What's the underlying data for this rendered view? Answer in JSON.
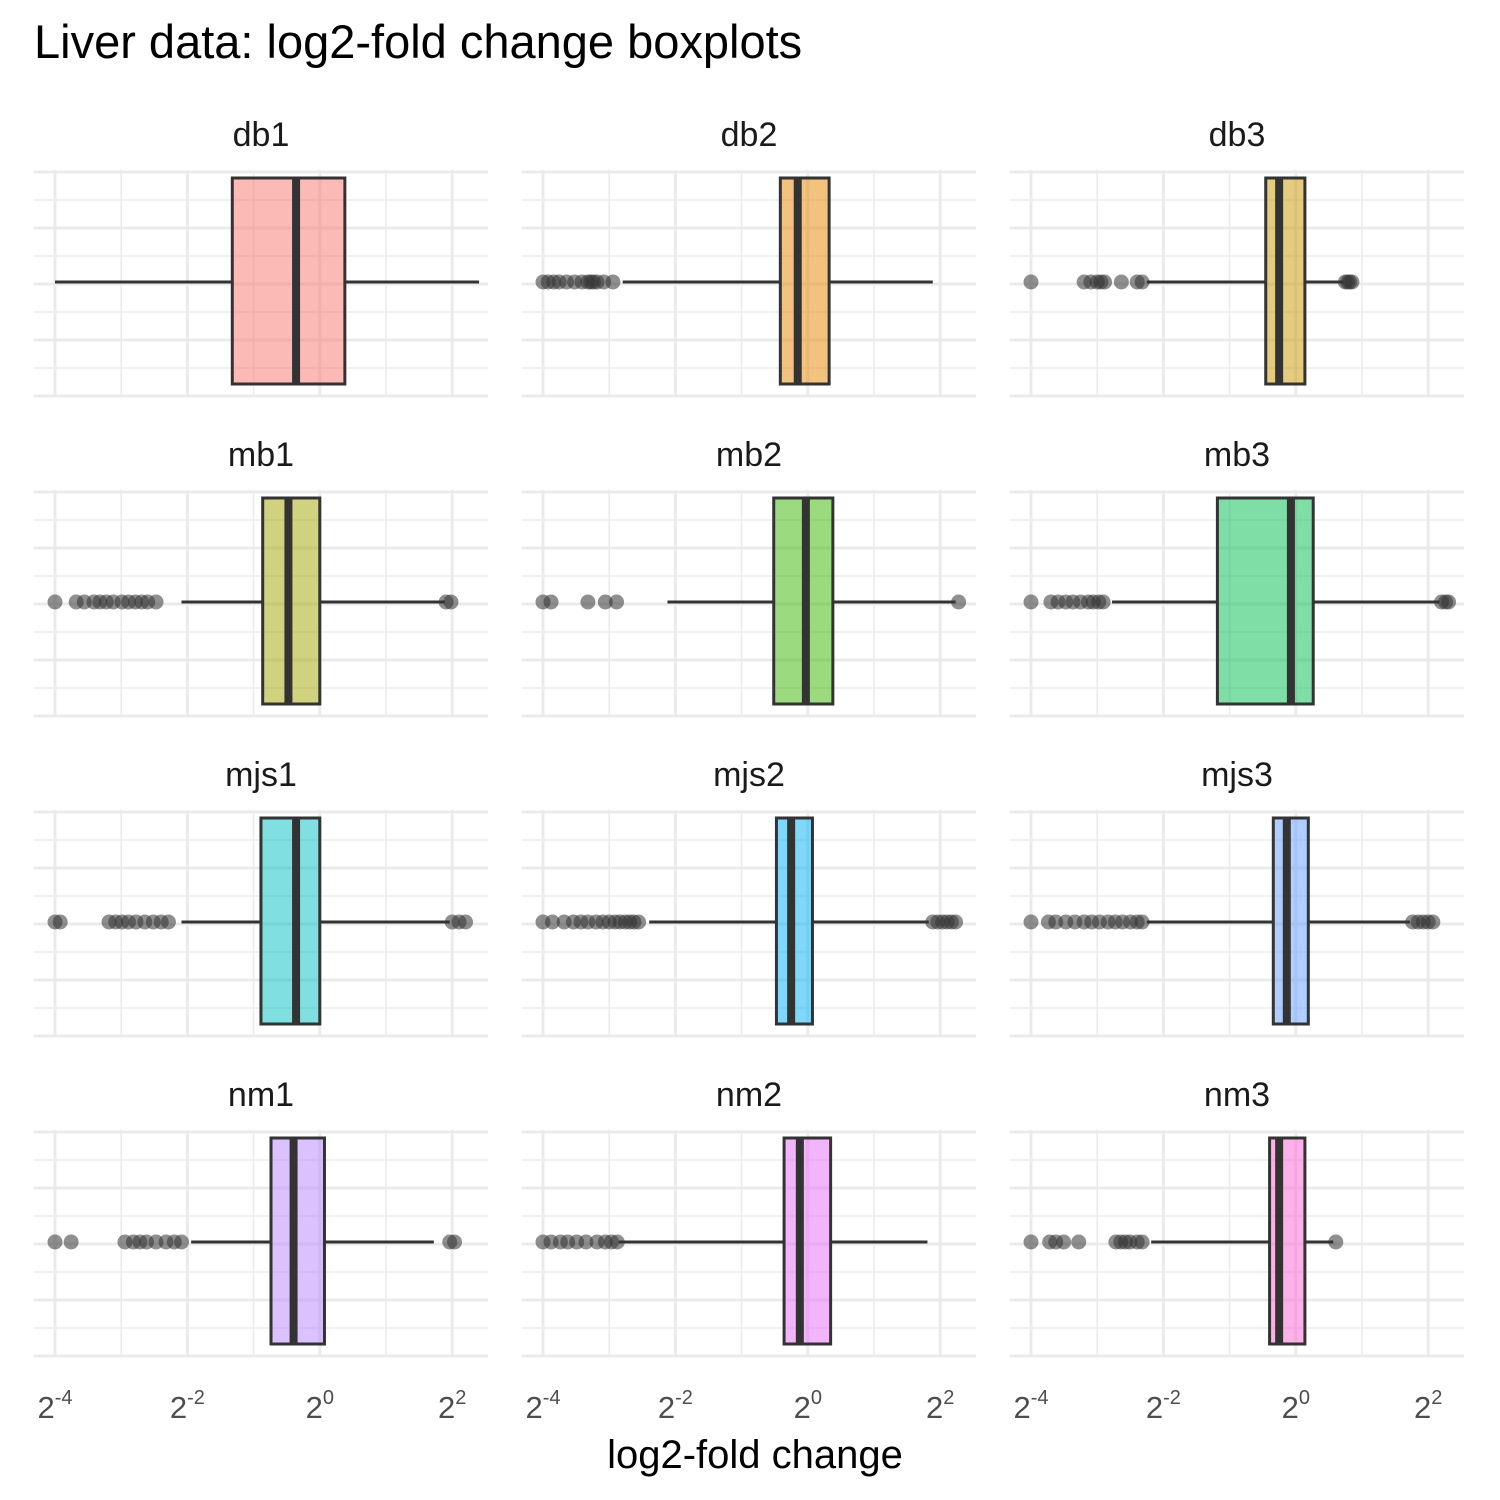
{
  "chart_data": {
    "type": "boxplot",
    "title": "Liver data: log2-fold change boxplots",
    "xlabel": "log2-fold change",
    "ylabel": "",
    "x_scale": "log2",
    "x_ticks": [
      {
        "base": "2",
        "exp": "-4"
      },
      {
        "base": "2",
        "exp": "-2"
      },
      {
        "base": "2",
        "exp": "0"
      },
      {
        "base": "2",
        "exp": "2"
      }
    ],
    "grid": true,
    "facets": [
      {
        "name": "db1",
        "color": "#F8766D",
        "q1": 0.4,
        "median": 0.78,
        "q3": 1.3,
        "whisker_low": 0.0625,
        "whisker_high": 5.3,
        "outliers": []
      },
      {
        "name": "db2",
        "color": "#E58700",
        "q1": 0.75,
        "median": 0.9,
        "q3": 1.25,
        "whisker_low": 0.144,
        "whisker_high": 3.7,
        "outliers": [
          0.0625,
          0.066,
          0.07,
          0.074,
          0.08,
          0.087,
          0.094,
          0.1,
          0.103,
          0.106,
          0.11,
          0.118,
          0.13
        ]
      },
      {
        "name": "db3",
        "color": "#C99800",
        "q1": 0.73,
        "median": 0.84,
        "q3": 1.1,
        "whisker_low": 0.21,
        "whisker_high": 1.65,
        "outliers": [
          0.0625,
          0.109,
          0.117,
          0.125,
          0.13,
          0.135,
          0.161,
          0.19,
          0.2,
          1.68,
          1.72,
          1.76,
          1.8
        ]
      },
      {
        "name": "mb1",
        "color": "#A3A500",
        "q1": 0.55,
        "median": 0.72,
        "q3": 1.0,
        "whisker_low": 0.235,
        "whisker_high": 3.7,
        "outliers": [
          0.0625,
          0.078,
          0.085,
          0.094,
          0.1,
          0.107,
          0.115,
          0.126,
          0.135,
          0.145,
          0.155,
          0.165,
          0.18,
          3.75,
          3.95
        ]
      },
      {
        "name": "mb2",
        "color": "#39B600",
        "q1": 0.7,
        "median": 0.98,
        "q3": 1.3,
        "whisker_low": 0.23,
        "whisker_high": 4.7,
        "outliers": [
          0.0625,
          0.068,
          0.1,
          0.12,
          0.135,
          4.85
        ]
      },
      {
        "name": "mb3",
        "color": "#00BB4E",
        "q1": 0.44,
        "median": 0.95,
        "q3": 1.2,
        "whisker_low": 0.146,
        "whisker_high": 4.5,
        "outliers": [
          0.0625,
          0.077,
          0.083,
          0.09,
          0.097,
          0.105,
          0.114,
          0.12,
          0.127,
          0.133,
          4.6,
          4.8,
          4.95
        ]
      },
      {
        "name": "mjs1",
        "color": "#00BFC4",
        "q1": 0.54,
        "median": 0.78,
        "q3": 1.0,
        "whisker_low": 0.235,
        "whisker_high": 3.9,
        "outliers": [
          0.0625,
          0.066,
          0.11,
          0.118,
          0.126,
          0.135,
          0.146,
          0.16,
          0.175,
          0.19,
          0.205,
          4.0,
          4.3,
          4.6
        ]
      },
      {
        "name": "mjs2",
        "color": "#00B0F6",
        "q1": 0.72,
        "median": 0.84,
        "q3": 1.05,
        "whisker_low": 0.19,
        "whisker_high": 3.55,
        "outliers": [
          0.0625,
          0.069,
          0.078,
          0.086,
          0.093,
          0.1,
          0.109,
          0.117,
          0.125,
          0.133,
          0.14,
          0.148,
          0.155,
          0.162,
          0.17,
          3.7,
          3.9,
          4.1,
          4.3,
          4.5,
          4.7
        ]
      },
      {
        "name": "mjs3",
        "color": "#619CFF",
        "q1": 0.79,
        "median": 0.91,
        "q3": 1.14,
        "whisker_low": 0.21,
        "whisker_high": 3.3,
        "outliers": [
          0.0625,
          0.075,
          0.081,
          0.09,
          0.099,
          0.109,
          0.118,
          0.128,
          0.14,
          0.151,
          0.163,
          0.177,
          0.19,
          0.2,
          3.4,
          3.6,
          3.8,
          4.0,
          4.2
        ]
      },
      {
        "name": "nm1",
        "color": "#B983FF",
        "q1": 0.6,
        "median": 0.76,
        "q3": 1.05,
        "whisker_low": 0.26,
        "whisker_high": 3.3,
        "outliers": [
          0.0625,
          0.074,
          0.13,
          0.142,
          0.152,
          0.163,
          0.18,
          0.2,
          0.218,
          0.235,
          3.9,
          4.1
        ]
      },
      {
        "name": "nm2",
        "color": "#E76BF3",
        "q1": 0.78,
        "median": 0.92,
        "q3": 1.27,
        "whisker_low": 0.138,
        "whisker_high": 3.5,
        "outliers": [
          0.0625,
          0.068,
          0.075,
          0.081,
          0.089,
          0.098,
          0.11,
          0.12,
          0.128,
          0.136
        ]
      },
      {
        "name": "nm3",
        "color": "#FD61D1",
        "q1": 0.76,
        "median": 0.84,
        "q3": 1.1,
        "whisker_low": 0.22,
        "whisker_high": 1.48,
        "outliers": [
          0.0625,
          0.076,
          0.081,
          0.088,
          0.103,
          0.152,
          0.16,
          0.168,
          0.176,
          0.19,
          0.2,
          1.52
        ]
      }
    ]
  }
}
